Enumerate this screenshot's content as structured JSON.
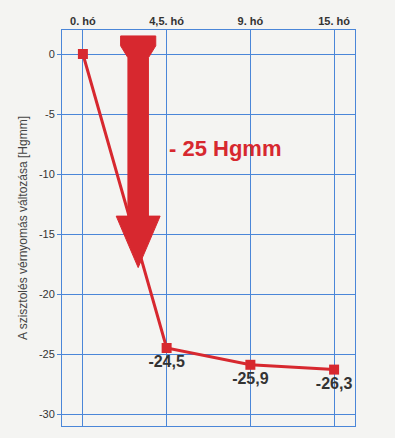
{
  "chart_data": {
    "type": "line",
    "categories": [
      "0. hó",
      "4,5. hó",
      "9. hó",
      "15. hó"
    ],
    "values": [
      0,
      -24.5,
      -25.9,
      -26.3
    ],
    "value_labels": [
      null,
      "-24,5",
      "-25,9",
      "-26,3"
    ],
    "data_labels": true,
    "y_label": "A szisztolés vérnyomás változása [Hgmm]",
    "annotations": [
      "- 25 Hgmm"
    ],
    "color": "#d7282f",
    "marker": "square",
    "ylim": [
      -31,
      2
    ],
    "yticks": [
      -30,
      -25,
      -20,
      -15,
      -10,
      -5,
      0
    ],
    "grid": true
  }
}
